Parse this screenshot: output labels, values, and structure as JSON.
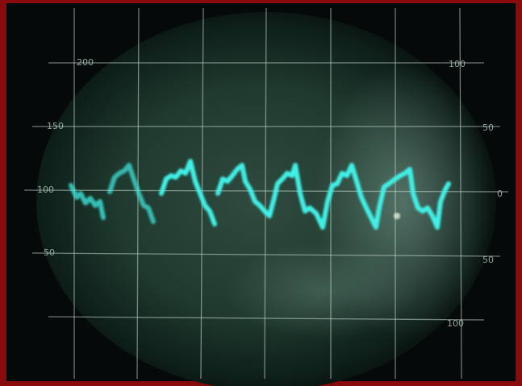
{
  "scale": {
    "left_labels": [
      "200",
      "150",
      "100",
      "50"
    ],
    "right_labels": [
      "100",
      "50",
      "0",
      "50",
      "100"
    ]
  }
}
